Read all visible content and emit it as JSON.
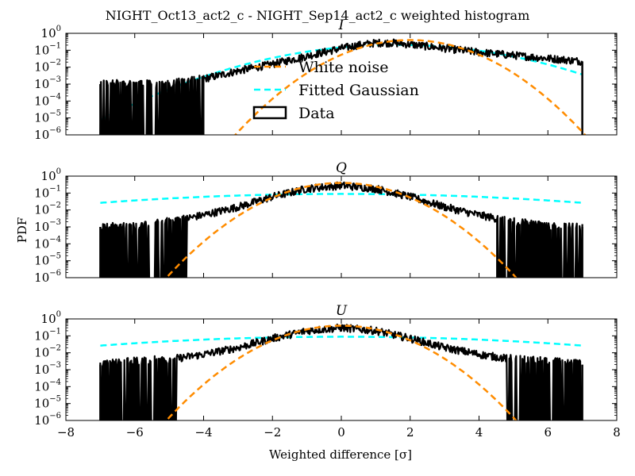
{
  "figure": {
    "title": "NIGHT_Oct13_act2_c - NIGHT_Sep14_act2_c weighted histogram",
    "xlabel": "Weighted difference [σ]",
    "ylabel": "PDF"
  },
  "chart_data": [
    {
      "type": "line",
      "title": "I",
      "xlim": [
        -8,
        8
      ],
      "ylim": [
        1e-06,
        1
      ],
      "yscale": "log",
      "xticks": [
        -8,
        -6,
        -4,
        -2,
        0,
        2,
        4,
        6,
        8
      ],
      "yticks_exponents": [
        0,
        -1,
        -2,
        -3,
        -4,
        -5,
        -6
      ],
      "legend": {
        "placement": "center",
        "entries": [
          {
            "label": "White noise",
            "style": "dashed",
            "color": "#ff8c00"
          },
          {
            "label": "Fitted Gaussian",
            "style": "dashed",
            "color": "#00ffff"
          },
          {
            "label": "Data",
            "style": "box",
            "color": "#000000"
          }
        ]
      },
      "series": [
        {
          "name": "White noise",
          "style": "dashed",
          "color": "#ff8c00",
          "gaussian": {
            "mu": 2.0,
            "sigma": 1.0
          }
        },
        {
          "name": "Fitted Gaussian",
          "style": "dashed",
          "color": "#00ffff",
          "gaussian": {
            "mu": 1.6,
            "sigma": 1.9
          },
          "x_range": [
            -7,
            7
          ]
        },
        {
          "name": "Data",
          "style": "histogram",
          "color": "#000000",
          "x_range": [
            -7,
            7
          ],
          "envelope": {
            "x": [
              -7,
              -6,
              -5,
              -4,
              -3,
              -2,
              -1,
              0,
              0.5,
              1,
              1.5,
              2,
              3,
              4,
              5,
              6,
              7
            ],
            "y": [
              0.001,
              0.001,
              0.001,
              0.002,
              0.006,
              0.015,
              0.045,
              0.13,
              0.2,
              0.27,
              0.27,
              0.22,
              0.13,
              0.075,
              0.05,
              0.033,
              0.022
            ]
          },
          "sparse_below_x": -4.0
        }
      ]
    },
    {
      "type": "line",
      "title": "Q",
      "xlim": [
        -8,
        8
      ],
      "ylim": [
        1e-06,
        1
      ],
      "yscale": "log",
      "xticks": [
        -8,
        -6,
        -4,
        -2,
        0,
        2,
        4,
        6,
        8
      ],
      "yticks_exponents": [
        0,
        -1,
        -2,
        -3,
        -4,
        -5,
        -6
      ],
      "series": [
        {
          "name": "White noise",
          "style": "dashed",
          "color": "#ff8c00",
          "gaussian": {
            "mu": 0.0,
            "sigma": 1.0
          }
        },
        {
          "name": "Fitted Gaussian",
          "style": "dashed",
          "color": "#00ffff",
          "gaussian": {
            "mu": 0.0,
            "sigma": 4.5
          },
          "x_range": [
            -7,
            7
          ]
        },
        {
          "name": "Data",
          "style": "histogram",
          "color": "#000000",
          "x_range": [
            -7,
            7
          ],
          "envelope": {
            "x": [
              -7,
              -6,
              -5,
              -4,
              -3,
              -2,
              -1,
              0,
              1,
              2,
              3,
              4,
              5,
              6,
              7
            ],
            "y": [
              0.001,
              0.001,
              0.002,
              0.005,
              0.015,
              0.06,
              0.18,
              0.28,
              0.18,
              0.06,
              0.015,
              0.005,
              0.002,
              0.001,
              0.001
            ]
          },
          "sparse_abs_above": 4.5
        }
      ]
    },
    {
      "type": "line",
      "title": "U",
      "xlim": [
        -8,
        8
      ],
      "ylim": [
        1e-06,
        1
      ],
      "yscale": "log",
      "xticks": [
        -8,
        -6,
        -4,
        -2,
        0,
        2,
        4,
        6,
        8
      ],
      "yticks_exponents": [
        0,
        -1,
        -2,
        -3,
        -4,
        -5,
        -6
      ],
      "series": [
        {
          "name": "White noise",
          "style": "dashed",
          "color": "#ff8c00",
          "gaussian": {
            "mu": 0.0,
            "sigma": 1.0
          }
        },
        {
          "name": "Fitted Gaussian",
          "style": "dashed",
          "color": "#00ffff",
          "gaussian": {
            "mu": 0.0,
            "sigma": 4.5
          },
          "x_range": [
            -7,
            7
          ]
        },
        {
          "name": "Data",
          "style": "histogram",
          "color": "#000000",
          "x_range": [
            -7,
            7
          ],
          "envelope": {
            "x": [
              -7,
              -6,
              -5,
              -4,
              -3,
              -2,
              -1,
              0,
              1,
              2,
              3,
              4,
              5,
              6,
              7
            ],
            "y": [
              0.002,
              0.003,
              0.004,
              0.008,
              0.02,
              0.07,
              0.2,
              0.3,
              0.2,
              0.07,
              0.02,
              0.008,
              0.004,
              0.003,
              0.002
            ]
          },
          "sparse_abs_above": 4.8
        }
      ]
    }
  ]
}
